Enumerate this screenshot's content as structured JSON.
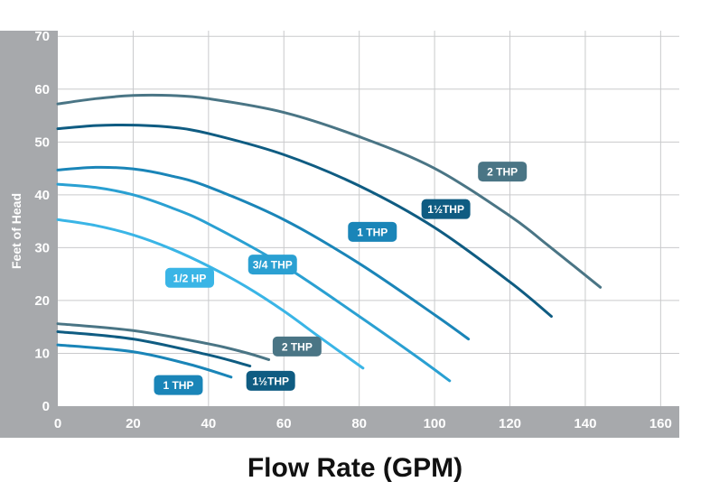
{
  "chart_data": {
    "type": "line",
    "xlabel": "Flow Rate (GPM)",
    "ylabel": "Feet of Head",
    "xlim": [
      0,
      160
    ],
    "ylim": [
      0,
      70
    ],
    "x_ticks": [
      "0",
      "20",
      "40",
      "60",
      "80",
      "100",
      "120",
      "140",
      "160"
    ],
    "y_ticks": [
      "0",
      "10",
      "20",
      "30",
      "40",
      "50",
      "60",
      "70"
    ],
    "grid": true,
    "series": [
      {
        "name": "2 THP",
        "color": "#4a7585",
        "points": [
          [
            0,
            57.2
          ],
          [
            10,
            58.2
          ],
          [
            20,
            58.8
          ],
          [
            30,
            58.8
          ],
          [
            40,
            58.2
          ],
          [
            60,
            55.6
          ],
          [
            80,
            51.0
          ],
          [
            100,
            45.0
          ],
          [
            120,
            36.0
          ],
          [
            130,
            30.5
          ],
          [
            144,
            22.5
          ]
        ]
      },
      {
        "name": "1½THP",
        "color": "#0f5c82",
        "points": [
          [
            0,
            52.5
          ],
          [
            10,
            53.1
          ],
          [
            20,
            53.2
          ],
          [
            30,
            52.8
          ],
          [
            40,
            51.6
          ],
          [
            60,
            47.6
          ],
          [
            80,
            41.7
          ],
          [
            100,
            33.8
          ],
          [
            120,
            23.5
          ],
          [
            131,
            17.0
          ]
        ]
      },
      {
        "name": "1 THP",
        "color": "#1a85b8",
        "points": [
          [
            0,
            44.7
          ],
          [
            10,
            45.2
          ],
          [
            20,
            44.9
          ],
          [
            30,
            43.6
          ],
          [
            40,
            41.5
          ],
          [
            60,
            35.3
          ],
          [
            80,
            27.0
          ],
          [
            100,
            17.3
          ],
          [
            109,
            12.7
          ]
        ]
      },
      {
        "name": "3/4 THP",
        "color": "#2aa0d2",
        "points": [
          [
            0,
            42.0
          ],
          [
            10,
            41.4
          ],
          [
            20,
            40.0
          ],
          [
            30,
            37.6
          ],
          [
            40,
            34.5
          ],
          [
            60,
            26.6
          ],
          [
            80,
            17.0
          ],
          [
            95,
            9.5
          ],
          [
            104,
            4.8
          ]
        ]
      },
      {
        "name": "1/2 HP",
        "color": "#3ab5e6",
        "points": [
          [
            0,
            35.3
          ],
          [
            10,
            34.2
          ],
          [
            20,
            32.4
          ],
          [
            30,
            29.8
          ],
          [
            40,
            26.5
          ],
          [
            50,
            22.6
          ],
          [
            60,
            18.0
          ],
          [
            70,
            12.8
          ],
          [
            81,
            7.2
          ]
        ]
      },
      {
        "name": "2 THP",
        "color": "#4a7585",
        "points": [
          [
            0,
            15.6
          ],
          [
            20,
            14.3
          ],
          [
            40,
            11.8
          ],
          [
            50,
            10.1
          ],
          [
            56,
            8.8
          ]
        ]
      },
      {
        "name": "1½THP",
        "color": "#0f5c82",
        "points": [
          [
            0,
            14.1
          ],
          [
            20,
            12.7
          ],
          [
            40,
            9.7
          ],
          [
            51,
            7.6
          ]
        ]
      },
      {
        "name": "1 THP",
        "color": "#1a85b8",
        "points": [
          [
            0,
            11.6
          ],
          [
            20,
            10.3
          ],
          [
            35,
            7.9
          ],
          [
            46,
            5.5
          ]
        ]
      }
    ],
    "labels": [
      {
        "text": "2 THP",
        "color": "#4a7585",
        "x": 118,
        "y": 44.4
      },
      {
        "text": "1½THP",
        "color": "#0f5c82",
        "x": 103,
        "y": 37.3
      },
      {
        "text": "1 THP",
        "color": "#1a85b8",
        "x": 83.5,
        "y": 33.0
      },
      {
        "text": "3/4 THP",
        "color": "#2aa0d2",
        "x": 57,
        "y": 26.8
      },
      {
        "text": "1/2 HP",
        "color": "#3ab5e6",
        "x": 35,
        "y": 24.3
      },
      {
        "text": "2 THP",
        "color": "#4a7585",
        "x": 63.5,
        "y": 11.3
      },
      {
        "text": "1½THP",
        "color": "#0f5c82",
        "x": 56.5,
        "y": 4.8
      },
      {
        "text": "1 THP",
        "color": "#1a85b8",
        "x": 32,
        "y": 4.0
      }
    ]
  }
}
